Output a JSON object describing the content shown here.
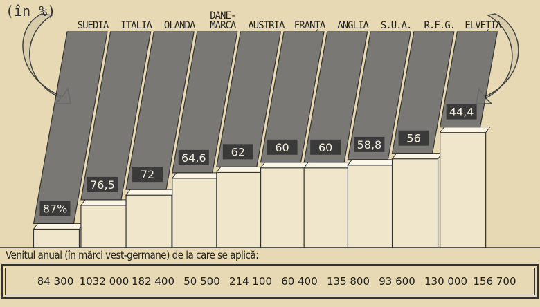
{
  "chart_data": {
    "type": "bar",
    "axis_label": "(în %)",
    "categories": [
      "SUEDIA",
      "ITALIA",
      "OLANDA",
      "DANE-\nMARCA",
      "AUSTRIA",
      "FRANȚA",
      "ANGLIA",
      "S.U.A.",
      "R.F.G.",
      "ELVEȚIA"
    ],
    "values": [
      87,
      76.5,
      72,
      64.6,
      62,
      60,
      60,
      58.8,
      56,
      44.4
    ],
    "value_labels": [
      "87%",
      "76,5",
      "72",
      "64,6",
      "62",
      "60",
      "60",
      "58,8",
      "56",
      "44,4"
    ],
    "color": "#6e6e6e"
  },
  "income_table": {
    "caption": "Venitul anual (în mărci vest-germane) de la care se aplică:",
    "cells": [
      "84 300",
      "1032 000",
      "182 400",
      "50 500",
      "214 100",
      "60 400",
      "135 800",
      "93 600",
      "130 000",
      "156 700"
    ]
  }
}
